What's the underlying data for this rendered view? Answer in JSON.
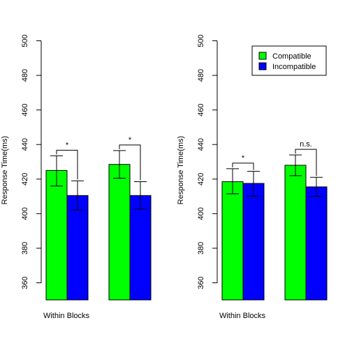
{
  "colors": {
    "compatible": "#00ff00",
    "incompatible": "#0000ff"
  },
  "chart_data": [
    {
      "type": "bar",
      "categories": [
        "Within Blocks",
        ""
      ],
      "series": [
        {
          "name": "Compatible",
          "values": [
            425,
            428.5
          ],
          "err_low": [
            416,
            420.5
          ],
          "err_high": [
            433.5,
            436.5
          ]
        },
        {
          "name": "Incompatible",
          "values": [
            410.5,
            410.5
          ],
          "err_low": [
            402,
            402.5
          ],
          "err_high": [
            419,
            418.5
          ]
        }
      ],
      "significance": [
        "*",
        "*"
      ],
      "xlabel": "Within Blocks",
      "ylabel": "Response Time(ms)",
      "ylim": [
        350,
        500
      ],
      "yticks": [
        "360",
        "380",
        "400",
        "420",
        "440",
        "460",
        "480",
        "500"
      ],
      "legend": null
    },
    {
      "type": "bar",
      "categories": [
        "Within Blocks",
        ""
      ],
      "series": [
        {
          "name": "Compatible",
          "values": [
            418.5,
            428
          ],
          "err_low": [
            411.5,
            422
          ],
          "err_high": [
            426,
            434
          ]
        },
        {
          "name": "Incompatible",
          "values": [
            417.5,
            415.5
          ],
          "err_low": [
            410,
            410
          ],
          "err_high": [
            424.5,
            421
          ]
        }
      ],
      "significance": [
        "*",
        "n.s."
      ],
      "xlabel": "Within Blocks",
      "ylabel": "Response Time(ms)",
      "ylim": [
        350,
        500
      ],
      "yticks": [
        "360",
        "380",
        "400",
        "420",
        "440",
        "460",
        "480",
        "500"
      ],
      "legend": {
        "position": "top-right",
        "entries": [
          "Compatible",
          "Incompatible"
        ]
      }
    }
  ]
}
